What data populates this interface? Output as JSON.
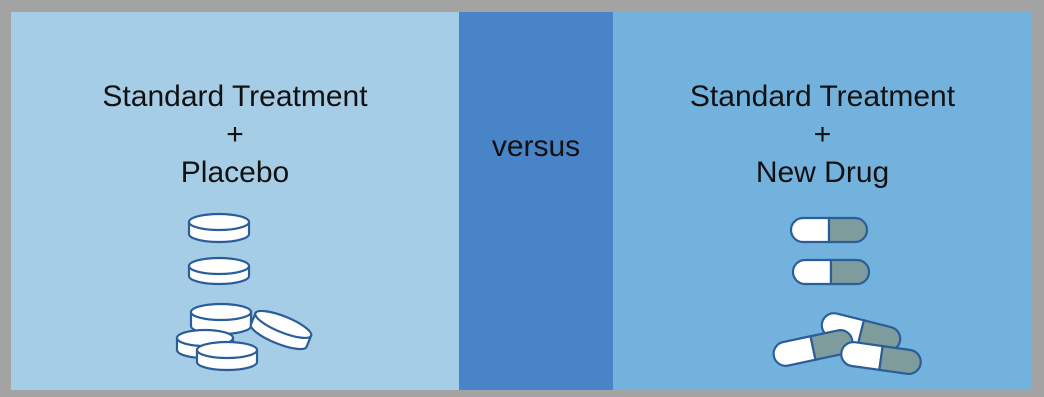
{
  "diagram": {
    "left": {
      "line1": "Standard Treatment",
      "line2": "+",
      "line3": "Placebo",
      "icon": "pills-icon"
    },
    "center": {
      "label": "versus"
    },
    "right": {
      "line1": "Standard Treatment",
      "line2": "+",
      "line3": "New Drug",
      "icon": "capsules-icon"
    },
    "colors": {
      "border": "#a3a3a3",
      "left_bg": "#a6cde6",
      "center_bg": "#4a84c8",
      "right_bg": "#72b2dd",
      "pill_stroke": "#2a5e9a",
      "capsule_dark_half": "#7f9c9c"
    }
  }
}
